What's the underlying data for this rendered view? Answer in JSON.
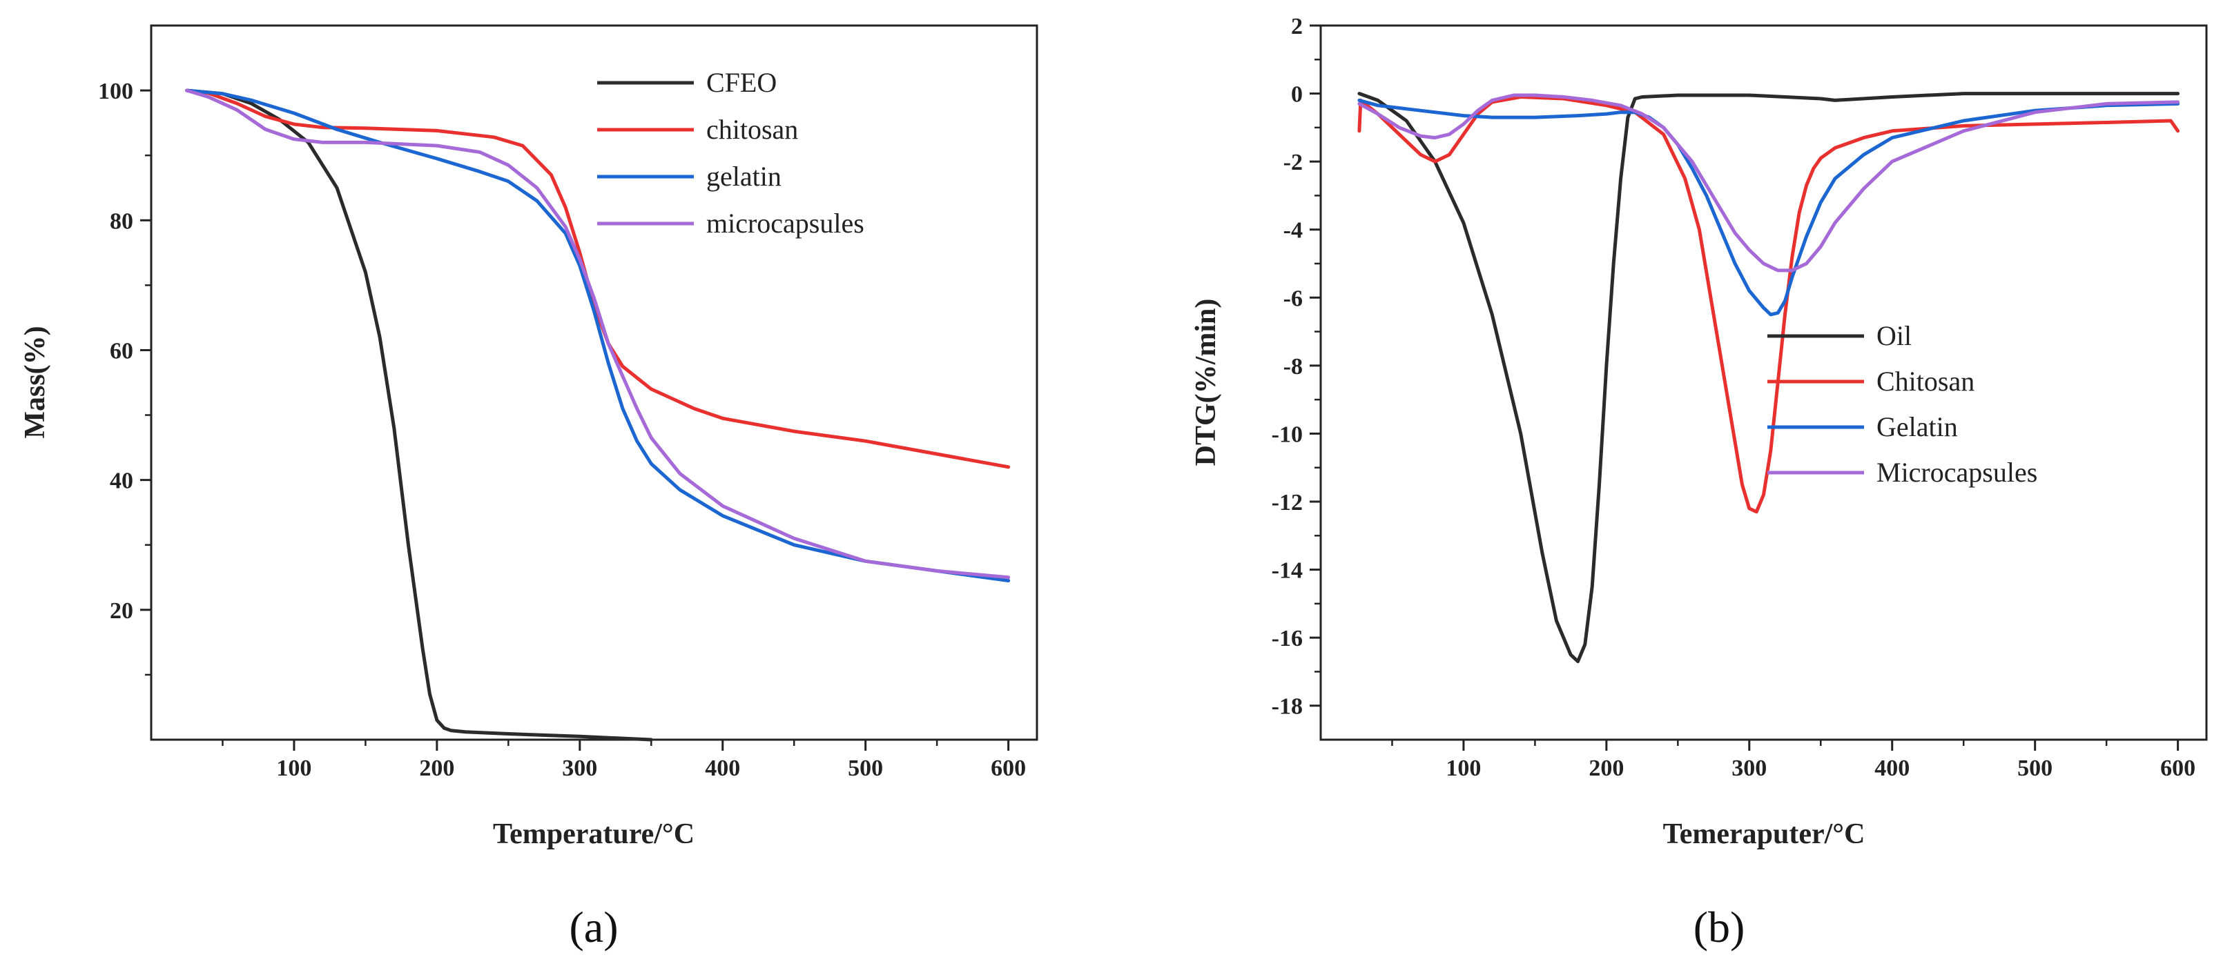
{
  "colors": {
    "CFEO": "#2b2b2b",
    "chitosan": "#e8302f",
    "gelatin": "#1c66d2",
    "microcapsules": "#a56ad8"
  },
  "chart_data": [
    {
      "type": "line",
      "panel_label": "(a)",
      "xlabel": "Temperature/°C",
      "ylabel": "Mass(%)",
      "xlim": [
        0,
        620
      ],
      "ylim": [
        0,
        110
      ],
      "xticks": [
        100,
        200,
        300,
        400,
        500,
        600
      ],
      "yticks": [
        20,
        40,
        60,
        80,
        100
      ],
      "legend_position": "top-right",
      "series": [
        {
          "name": "CFEO",
          "color_key": "CFEO",
          "x": [
            25,
            50,
            70,
            90,
            110,
            130,
            150,
            160,
            170,
            180,
            190,
            195,
            200,
            205,
            210,
            220,
            250,
            300,
            350
          ],
          "y": [
            100,
            99.5,
            98,
            95.5,
            92,
            85,
            72,
            62,
            48,
            30,
            14,
            7,
            3,
            1.8,
            1.4,
            1.2,
            0.9,
            0.5,
            0
          ]
        },
        {
          "name": "chitosan",
          "color_key": "chitosan",
          "x": [
            25,
            40,
            60,
            80,
            100,
            120,
            150,
            200,
            240,
            260,
            280,
            290,
            300,
            310,
            320,
            330,
            350,
            380,
            400,
            450,
            500,
            550,
            600
          ],
          "y": [
            100,
            99.6,
            98,
            96,
            94.8,
            94.3,
            94.2,
            93.8,
            92.8,
            91.5,
            87,
            82,
            75,
            67,
            61,
            57.5,
            54,
            51,
            49.5,
            47.5,
            46,
            44,
            42
          ]
        },
        {
          "name": "gelatin",
          "color_key": "gelatin",
          "x": [
            25,
            50,
            70,
            100,
            130,
            160,
            200,
            230,
            250,
            270,
            290,
            300,
            310,
            320,
            330,
            340,
            350,
            370,
            400,
            450,
            500,
            550,
            600
          ],
          "y": [
            100,
            99.5,
            98.5,
            96.5,
            94,
            92,
            89.5,
            87.5,
            86,
            83,
            78,
            73,
            66,
            58,
            51,
            46,
            42.5,
            38.5,
            34.5,
            30,
            27.5,
            26,
            24.5
          ]
        },
        {
          "name": "microcapsules",
          "color_key": "microcapsules",
          "x": [
            25,
            40,
            60,
            80,
            100,
            120,
            150,
            200,
            230,
            250,
            270,
            290,
            300,
            310,
            320,
            330,
            340,
            350,
            370,
            400,
            450,
            500,
            550,
            600
          ],
          "y": [
            100,
            99,
            97,
            94,
            92.5,
            92,
            92,
            91.5,
            90.5,
            88.5,
            85,
            79,
            74,
            68,
            61,
            56,
            51,
            46.5,
            41,
            36,
            31,
            27.5,
            26,
            25
          ]
        }
      ],
      "legend": [
        "CFEO",
        "chitosan",
        "gelatin",
        "microcapsules"
      ]
    },
    {
      "type": "line",
      "panel_label": "(b)",
      "xlabel": "Temeraputer/°C",
      "ylabel": "DTG(%/min)",
      "xlim": [
        0,
        620
      ],
      "ylim": [
        -19,
        2
      ],
      "xticks": [
        100,
        200,
        300,
        400,
        500,
        600
      ],
      "yticks": [
        2,
        0,
        -2,
        -4,
        -6,
        -8,
        -10,
        -12,
        -14,
        -16,
        -18
      ],
      "legend_position": "bottom-right",
      "series": [
        {
          "name": "Oil",
          "color_key": "CFEO",
          "x": [
            27,
            40,
            60,
            80,
            100,
            120,
            140,
            155,
            165,
            175,
            180,
            185,
            190,
            195,
            200,
            205,
            210,
            215,
            220,
            225,
            250,
            300,
            350,
            360,
            400,
            450,
            500,
            550,
            600
          ],
          "y": [
            0,
            -0.2,
            -0.8,
            -2,
            -3.8,
            -6.5,
            -10,
            -13.5,
            -15.5,
            -16.5,
            -16.7,
            -16.2,
            -14.5,
            -11.5,
            -8,
            -5,
            -2.5,
            -0.7,
            -0.15,
            -0.1,
            -0.05,
            -0.05,
            -0.15,
            -0.2,
            -0.1,
            0,
            0,
            0,
            0
          ]
        },
        {
          "name": "Chitosan",
          "color_key": "chitosan",
          "x": [
            27,
            28,
            40,
            55,
            70,
            80,
            90,
            100,
            110,
            120,
            140,
            170,
            200,
            220,
            240,
            255,
            265,
            275,
            285,
            295,
            300,
            305,
            310,
            315,
            320,
            325,
            330,
            335,
            340,
            345,
            350,
            360,
            380,
            400,
            450,
            500,
            550,
            595,
            600
          ],
          "y": [
            -1.1,
            -0.2,
            -0.6,
            -1.2,
            -1.8,
            -2,
            -1.8,
            -1.2,
            -0.6,
            -0.25,
            -0.1,
            -0.15,
            -0.35,
            -0.55,
            -1.2,
            -2.5,
            -4,
            -6.5,
            -9,
            -11.5,
            -12.2,
            -12.3,
            -11.8,
            -10.5,
            -8.5,
            -6.5,
            -4.8,
            -3.5,
            -2.7,
            -2.2,
            -1.9,
            -1.6,
            -1.3,
            -1.1,
            -0.95,
            -0.9,
            -0.85,
            -0.8,
            -1.1
          ]
        },
        {
          "name": "Gelatin",
          "color_key": "gelatin",
          "x": [
            27,
            40,
            60,
            80,
            100,
            120,
            150,
            180,
            200,
            210,
            220,
            230,
            240,
            250,
            260,
            270,
            280,
            290,
            300,
            310,
            315,
            320,
            325,
            330,
            340,
            350,
            360,
            380,
            400,
            450,
            500,
            550,
            600
          ],
          "y": [
            -0.2,
            -0.35,
            -0.45,
            -0.55,
            -0.65,
            -0.7,
            -0.7,
            -0.65,
            -0.6,
            -0.55,
            -0.55,
            -0.7,
            -1,
            -1.5,
            -2.2,
            -3,
            -4,
            -5,
            -5.8,
            -6.3,
            -6.5,
            -6.45,
            -6.1,
            -5.4,
            -4.2,
            -3.2,
            -2.5,
            -1.8,
            -1.3,
            -0.8,
            -0.5,
            -0.35,
            -0.3
          ]
        },
        {
          "name": "Microcapsules",
          "color_key": "microcapsules",
          "x": [
            27,
            40,
            55,
            70,
            80,
            90,
            100,
            110,
            120,
            135,
            150,
            170,
            190,
            210,
            225,
            240,
            250,
            260,
            270,
            280,
            290,
            300,
            310,
            320,
            330,
            340,
            350,
            360,
            380,
            400,
            450,
            500,
            550,
            600
          ],
          "y": [
            -0.3,
            -0.6,
            -1,
            -1.25,
            -1.3,
            -1.2,
            -0.9,
            -0.5,
            -0.2,
            -0.05,
            -0.05,
            -0.1,
            -0.2,
            -0.35,
            -0.6,
            -1,
            -1.5,
            -2,
            -2.7,
            -3.4,
            -4.1,
            -4.6,
            -5,
            -5.2,
            -5.2,
            -5,
            -4.5,
            -3.8,
            -2.8,
            -2,
            -1.1,
            -0.55,
            -0.3,
            -0.25
          ]
        }
      ],
      "legend": [
        "Oil",
        "Chitosan",
        "Gelatin",
        "Microcapsules"
      ]
    }
  ]
}
